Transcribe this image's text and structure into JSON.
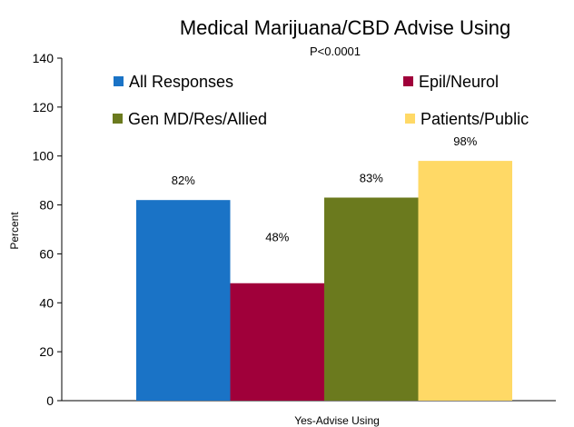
{
  "chart_data": {
    "type": "bar",
    "title": "Medical Marijuana/CBD Advise Using",
    "subtitle": "P<0.0001",
    "xlabel": "Yes-Advise Using",
    "ylabel": "Percent",
    "ylim": [
      0,
      140
    ],
    "yticks": [
      0,
      20,
      40,
      60,
      80,
      100,
      120,
      140
    ],
    "categories": [
      "Yes-Advise Using"
    ],
    "grid": false,
    "legend_position": "top",
    "series": [
      {
        "name": "All Responses",
        "values": [
          82
        ],
        "label": "82%",
        "color": "#1a73c6"
      },
      {
        "name": "Epil/Neurol",
        "values": [
          48
        ],
        "label": "48%",
        "color": "#a0003a"
      },
      {
        "name": "Gen MD/Res/Allied",
        "values": [
          83
        ],
        "label": "83%",
        "color": "#6b7a1e"
      },
      {
        "name": "Patients/Public",
        "values": [
          98
        ],
        "label": "98%",
        "color": "#ffd966"
      }
    ]
  }
}
